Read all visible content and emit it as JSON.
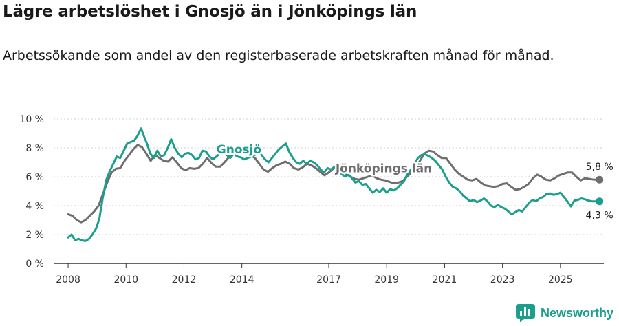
{
  "header": {
    "title": "Lägre arbetslöshet i Gnosjö än i Jönköpings län",
    "subtitle": "Arbetssökande som andel av den registerbaserade arbetskraften månad för månad."
  },
  "brand": {
    "name": "Newsworthy",
    "color": "#1b9e8c"
  },
  "chart_data": {
    "type": "line",
    "title": "Lägre arbetslöshet i Gnosjö än i Jönköpings län",
    "xlabel": "",
    "ylabel": "",
    "xlim": [
      2007.5,
      2026.5
    ],
    "ylim": [
      0,
      10
    ],
    "yticks": [
      0,
      2,
      4,
      6,
      8,
      10
    ],
    "ytick_labels": [
      "0 %",
      "2 %",
      "4 %",
      "6 %",
      "8 %",
      "10 %"
    ],
    "xticks": [
      2008,
      2010,
      2012,
      2014,
      2017,
      2019,
      2021,
      2023,
      2025
    ],
    "xtick_labels": [
      "2008",
      "2010",
      "2012",
      "2014",
      "2017",
      "2019",
      "2021",
      "2023",
      "2025"
    ],
    "grid": true,
    "legend": "inline labels",
    "series": [
      {
        "name": "Jönköpings län",
        "color": "#6e6e6e",
        "label_at": [
          2018.9,
          6.6
        ],
        "points": [
          [
            2008.0,
            3.4
          ],
          [
            2008.15,
            3.3
          ],
          [
            2008.3,
            3.0
          ],
          [
            2008.45,
            2.85
          ],
          [
            2008.6,
            3.0
          ],
          [
            2008.75,
            3.3
          ],
          [
            2008.9,
            3.6
          ],
          [
            2009.05,
            4.0
          ],
          [
            2009.2,
            4.8
          ],
          [
            2009.35,
            5.6
          ],
          [
            2009.5,
            6.3
          ],
          [
            2009.65,
            6.55
          ],
          [
            2009.8,
            6.6
          ],
          [
            2009.95,
            7.1
          ],
          [
            2010.1,
            7.5
          ],
          [
            2010.25,
            7.9
          ],
          [
            2010.4,
            8.2
          ],
          [
            2010.55,
            8.05
          ],
          [
            2010.7,
            7.6
          ],
          [
            2010.85,
            7.1
          ],
          [
            2011.0,
            7.5
          ],
          [
            2011.15,
            7.3
          ],
          [
            2011.3,
            7.1
          ],
          [
            2011.45,
            7.05
          ],
          [
            2011.6,
            7.35
          ],
          [
            2011.75,
            7.0
          ],
          [
            2011.9,
            6.6
          ],
          [
            2012.05,
            6.45
          ],
          [
            2012.2,
            6.6
          ],
          [
            2012.35,
            6.55
          ],
          [
            2012.5,
            6.6
          ],
          [
            2012.65,
            6.9
          ],
          [
            2012.8,
            7.3
          ],
          [
            2012.95,
            6.95
          ],
          [
            2013.1,
            6.7
          ],
          [
            2013.25,
            6.7
          ],
          [
            2013.4,
            7.0
          ],
          [
            2013.55,
            7.35
          ],
          [
            2013.7,
            7.7
          ],
          [
            2013.85,
            7.9
          ],
          [
            2014.0,
            7.9
          ],
          [
            2014.15,
            7.7
          ],
          [
            2014.3,
            7.5
          ],
          [
            2014.45,
            7.3
          ],
          [
            2014.6,
            6.9
          ],
          [
            2014.75,
            6.5
          ],
          [
            2014.9,
            6.35
          ],
          [
            2015.05,
            6.6
          ],
          [
            2015.2,
            6.8
          ],
          [
            2015.35,
            6.9
          ],
          [
            2015.5,
            7.05
          ],
          [
            2015.65,
            6.9
          ],
          [
            2015.8,
            6.6
          ],
          [
            2015.95,
            6.5
          ],
          [
            2016.1,
            6.65
          ],
          [
            2016.25,
            6.9
          ],
          [
            2016.4,
            6.8
          ],
          [
            2016.55,
            6.6
          ],
          [
            2016.7,
            6.35
          ],
          [
            2016.85,
            6.1
          ],
          [
            2017.0,
            6.3
          ],
          [
            2017.15,
            6.55
          ],
          [
            2017.3,
            6.75
          ],
          [
            2017.45,
            6.6
          ],
          [
            2017.6,
            6.2
          ],
          [
            2017.75,
            6.0
          ],
          [
            2017.9,
            5.85
          ],
          [
            2018.05,
            5.8
          ],
          [
            2018.2,
            5.9
          ],
          [
            2018.35,
            6.0
          ],
          [
            2018.5,
            6.1
          ],
          [
            2018.65,
            5.9
          ],
          [
            2018.8,
            5.8
          ],
          [
            2018.95,
            5.75
          ],
          [
            2019.1,
            5.65
          ],
          [
            2019.25,
            5.55
          ],
          [
            2019.4,
            5.6
          ],
          [
            2019.55,
            5.7
          ],
          [
            2019.7,
            6.0
          ],
          [
            2019.85,
            6.3
          ],
          [
            2020.0,
            6.6
          ],
          [
            2020.15,
            7.1
          ],
          [
            2020.3,
            7.6
          ],
          [
            2020.45,
            7.8
          ],
          [
            2020.6,
            7.75
          ],
          [
            2020.75,
            7.5
          ],
          [
            2020.9,
            7.3
          ],
          [
            2021.05,
            7.3
          ],
          [
            2021.2,
            6.9
          ],
          [
            2021.35,
            6.5
          ],
          [
            2021.5,
            6.2
          ],
          [
            2021.65,
            6.0
          ],
          [
            2021.8,
            5.8
          ],
          [
            2021.95,
            5.75
          ],
          [
            2022.1,
            5.85
          ],
          [
            2022.25,
            5.6
          ],
          [
            2022.4,
            5.4
          ],
          [
            2022.55,
            5.35
          ],
          [
            2022.7,
            5.3
          ],
          [
            2022.85,
            5.35
          ],
          [
            2023.0,
            5.5
          ],
          [
            2023.15,
            5.55
          ],
          [
            2023.3,
            5.3
          ],
          [
            2023.45,
            5.1
          ],
          [
            2023.6,
            5.15
          ],
          [
            2023.75,
            5.3
          ],
          [
            2023.9,
            5.5
          ],
          [
            2024.05,
            5.9
          ],
          [
            2024.2,
            6.15
          ],
          [
            2024.35,
            6.0
          ],
          [
            2024.5,
            5.8
          ],
          [
            2024.65,
            5.75
          ],
          [
            2024.8,
            5.9
          ],
          [
            2024.95,
            6.1
          ],
          [
            2025.1,
            6.2
          ],
          [
            2025.25,
            6.3
          ],
          [
            2025.4,
            6.3
          ],
          [
            2025.55,
            6.0
          ],
          [
            2025.7,
            5.75
          ],
          [
            2025.85,
            5.9
          ],
          [
            2026.0,
            5.85
          ],
          [
            2026.15,
            5.8
          ],
          [
            2026.35,
            5.8
          ]
        ]
      },
      {
        "name": "Gnosjö",
        "color": "#1b9e8c",
        "label_at": [
          2013.9,
          7.9
        ],
        "points": [
          [
            2008.0,
            1.8
          ],
          [
            2008.12,
            2.0
          ],
          [
            2008.24,
            1.6
          ],
          [
            2008.36,
            1.7
          ],
          [
            2008.48,
            1.6
          ],
          [
            2008.6,
            1.55
          ],
          [
            2008.72,
            1.7
          ],
          [
            2008.84,
            2.0
          ],
          [
            2008.96,
            2.4
          ],
          [
            2009.08,
            3.1
          ],
          [
            2009.2,
            4.6
          ],
          [
            2009.32,
            5.8
          ],
          [
            2009.44,
            6.4
          ],
          [
            2009.56,
            6.9
          ],
          [
            2009.68,
            7.4
          ],
          [
            2009.8,
            7.3
          ],
          [
            2009.92,
            7.8
          ],
          [
            2010.04,
            8.3
          ],
          [
            2010.16,
            8.4
          ],
          [
            2010.28,
            8.5
          ],
          [
            2010.4,
            8.85
          ],
          [
            2010.52,
            9.35
          ],
          [
            2010.6,
            8.9
          ],
          [
            2010.72,
            8.3
          ],
          [
            2010.84,
            7.6
          ],
          [
            2010.96,
            7.3
          ],
          [
            2011.08,
            7.8
          ],
          [
            2011.2,
            7.4
          ],
          [
            2011.32,
            7.5
          ],
          [
            2011.44,
            8.0
          ],
          [
            2011.56,
            8.6
          ],
          [
            2011.68,
            8.0
          ],
          [
            2011.8,
            7.6
          ],
          [
            2011.92,
            7.35
          ],
          [
            2012.04,
            7.6
          ],
          [
            2012.16,
            7.65
          ],
          [
            2012.28,
            7.5
          ],
          [
            2012.4,
            7.2
          ],
          [
            2012.52,
            7.3
          ],
          [
            2012.64,
            7.8
          ],
          [
            2012.76,
            7.75
          ],
          [
            2012.88,
            7.4
          ],
          [
            2013.0,
            7.2
          ],
          [
            2013.12,
            7.4
          ],
          [
            2013.24,
            7.6
          ],
          [
            2013.36,
            7.8
          ],
          [
            2013.48,
            7.5
          ],
          [
            2013.6,
            7.3
          ],
          [
            2013.72,
            7.6
          ],
          [
            2013.84,
            7.4
          ],
          [
            2013.96,
            7.35
          ],
          [
            2014.08,
            7.2
          ],
          [
            2014.2,
            7.3
          ],
          [
            2014.32,
            7.4
          ],
          [
            2014.44,
            7.5
          ],
          [
            2014.56,
            7.65
          ],
          [
            2014.68,
            7.5
          ],
          [
            2014.8,
            7.2
          ],
          [
            2014.92,
            7.0
          ],
          [
            2015.04,
            7.3
          ],
          [
            2015.16,
            7.6
          ],
          [
            2015.28,
            7.9
          ],
          [
            2015.4,
            8.1
          ],
          [
            2015.52,
            8.3
          ],
          [
            2015.64,
            7.7
          ],
          [
            2015.76,
            7.3
          ],
          [
            2015.88,
            7.0
          ],
          [
            2016.0,
            6.9
          ],
          [
            2016.12,
            7.1
          ],
          [
            2016.24,
            6.9
          ],
          [
            2016.36,
            7.1
          ],
          [
            2016.48,
            7.0
          ],
          [
            2016.6,
            6.8
          ],
          [
            2016.72,
            6.5
          ],
          [
            2016.84,
            6.3
          ],
          [
            2016.96,
            6.6
          ],
          [
            2017.08,
            6.5
          ],
          [
            2017.2,
            6.7
          ],
          [
            2017.32,
            6.6
          ],
          [
            2017.44,
            6.2
          ],
          [
            2017.56,
            6.0
          ],
          [
            2017.68,
            6.15
          ],
          [
            2017.8,
            5.9
          ],
          [
            2017.92,
            5.6
          ],
          [
            2018.04,
            5.7
          ],
          [
            2018.16,
            5.45
          ],
          [
            2018.28,
            5.5
          ],
          [
            2018.4,
            5.2
          ],
          [
            2018.52,
            4.9
          ],
          [
            2018.64,
            5.1
          ],
          [
            2018.76,
            4.95
          ],
          [
            2018.88,
            5.2
          ],
          [
            2019.0,
            4.9
          ],
          [
            2019.12,
            5.15
          ],
          [
            2019.24,
            5.05
          ],
          [
            2019.36,
            5.2
          ],
          [
            2019.48,
            5.45
          ],
          [
            2019.6,
            5.7
          ],
          [
            2019.72,
            6.2
          ],
          [
            2019.84,
            6.5
          ],
          [
            2019.96,
            6.9
          ],
          [
            2020.08,
            7.3
          ],
          [
            2020.2,
            7.5
          ],
          [
            2020.32,
            7.55
          ],
          [
            2020.44,
            7.45
          ],
          [
            2020.56,
            7.3
          ],
          [
            2020.68,
            7.1
          ],
          [
            2020.8,
            6.8
          ],
          [
            2020.92,
            6.5
          ],
          [
            2021.04,
            6.0
          ],
          [
            2021.16,
            5.6
          ],
          [
            2021.28,
            5.3
          ],
          [
            2021.4,
            5.2
          ],
          [
            2021.52,
            5.0
          ],
          [
            2021.64,
            4.7
          ],
          [
            2021.76,
            4.5
          ],
          [
            2021.88,
            4.3
          ],
          [
            2022.0,
            4.4
          ],
          [
            2022.12,
            4.25
          ],
          [
            2022.24,
            4.35
          ],
          [
            2022.36,
            4.5
          ],
          [
            2022.48,
            4.3
          ],
          [
            2022.6,
            4.0
          ],
          [
            2022.72,
            3.9
          ],
          [
            2022.84,
            4.05
          ],
          [
            2022.96,
            3.9
          ],
          [
            2023.08,
            3.8
          ],
          [
            2023.2,
            3.6
          ],
          [
            2023.32,
            3.4
          ],
          [
            2023.44,
            3.55
          ],
          [
            2023.56,
            3.7
          ],
          [
            2023.68,
            3.6
          ],
          [
            2023.8,
            3.9
          ],
          [
            2023.92,
            4.2
          ],
          [
            2024.04,
            4.4
          ],
          [
            2024.16,
            4.3
          ],
          [
            2024.28,
            4.5
          ],
          [
            2024.4,
            4.6
          ],
          [
            2024.52,
            4.8
          ],
          [
            2024.64,
            4.85
          ],
          [
            2024.76,
            4.75
          ],
          [
            2024.88,
            4.8
          ],
          [
            2025.0,
            4.9
          ],
          [
            2025.12,
            4.6
          ],
          [
            2025.24,
            4.3
          ],
          [
            2025.36,
            3.95
          ],
          [
            2025.48,
            4.35
          ],
          [
            2025.6,
            4.4
          ],
          [
            2025.72,
            4.5
          ],
          [
            2025.84,
            4.45
          ],
          [
            2025.96,
            4.35
          ],
          [
            2026.1,
            4.3
          ],
          [
            2026.35,
            4.3
          ]
        ]
      }
    ],
    "annotations": [
      {
        "series": "Jönköpings län",
        "text": "5,8 %",
        "at": [
          2026.35,
          5.8
        ],
        "position": "above"
      },
      {
        "series": "Gnosjö",
        "text": "4,3 %",
        "at": [
          2026.35,
          4.3
        ],
        "position": "below"
      }
    ]
  }
}
